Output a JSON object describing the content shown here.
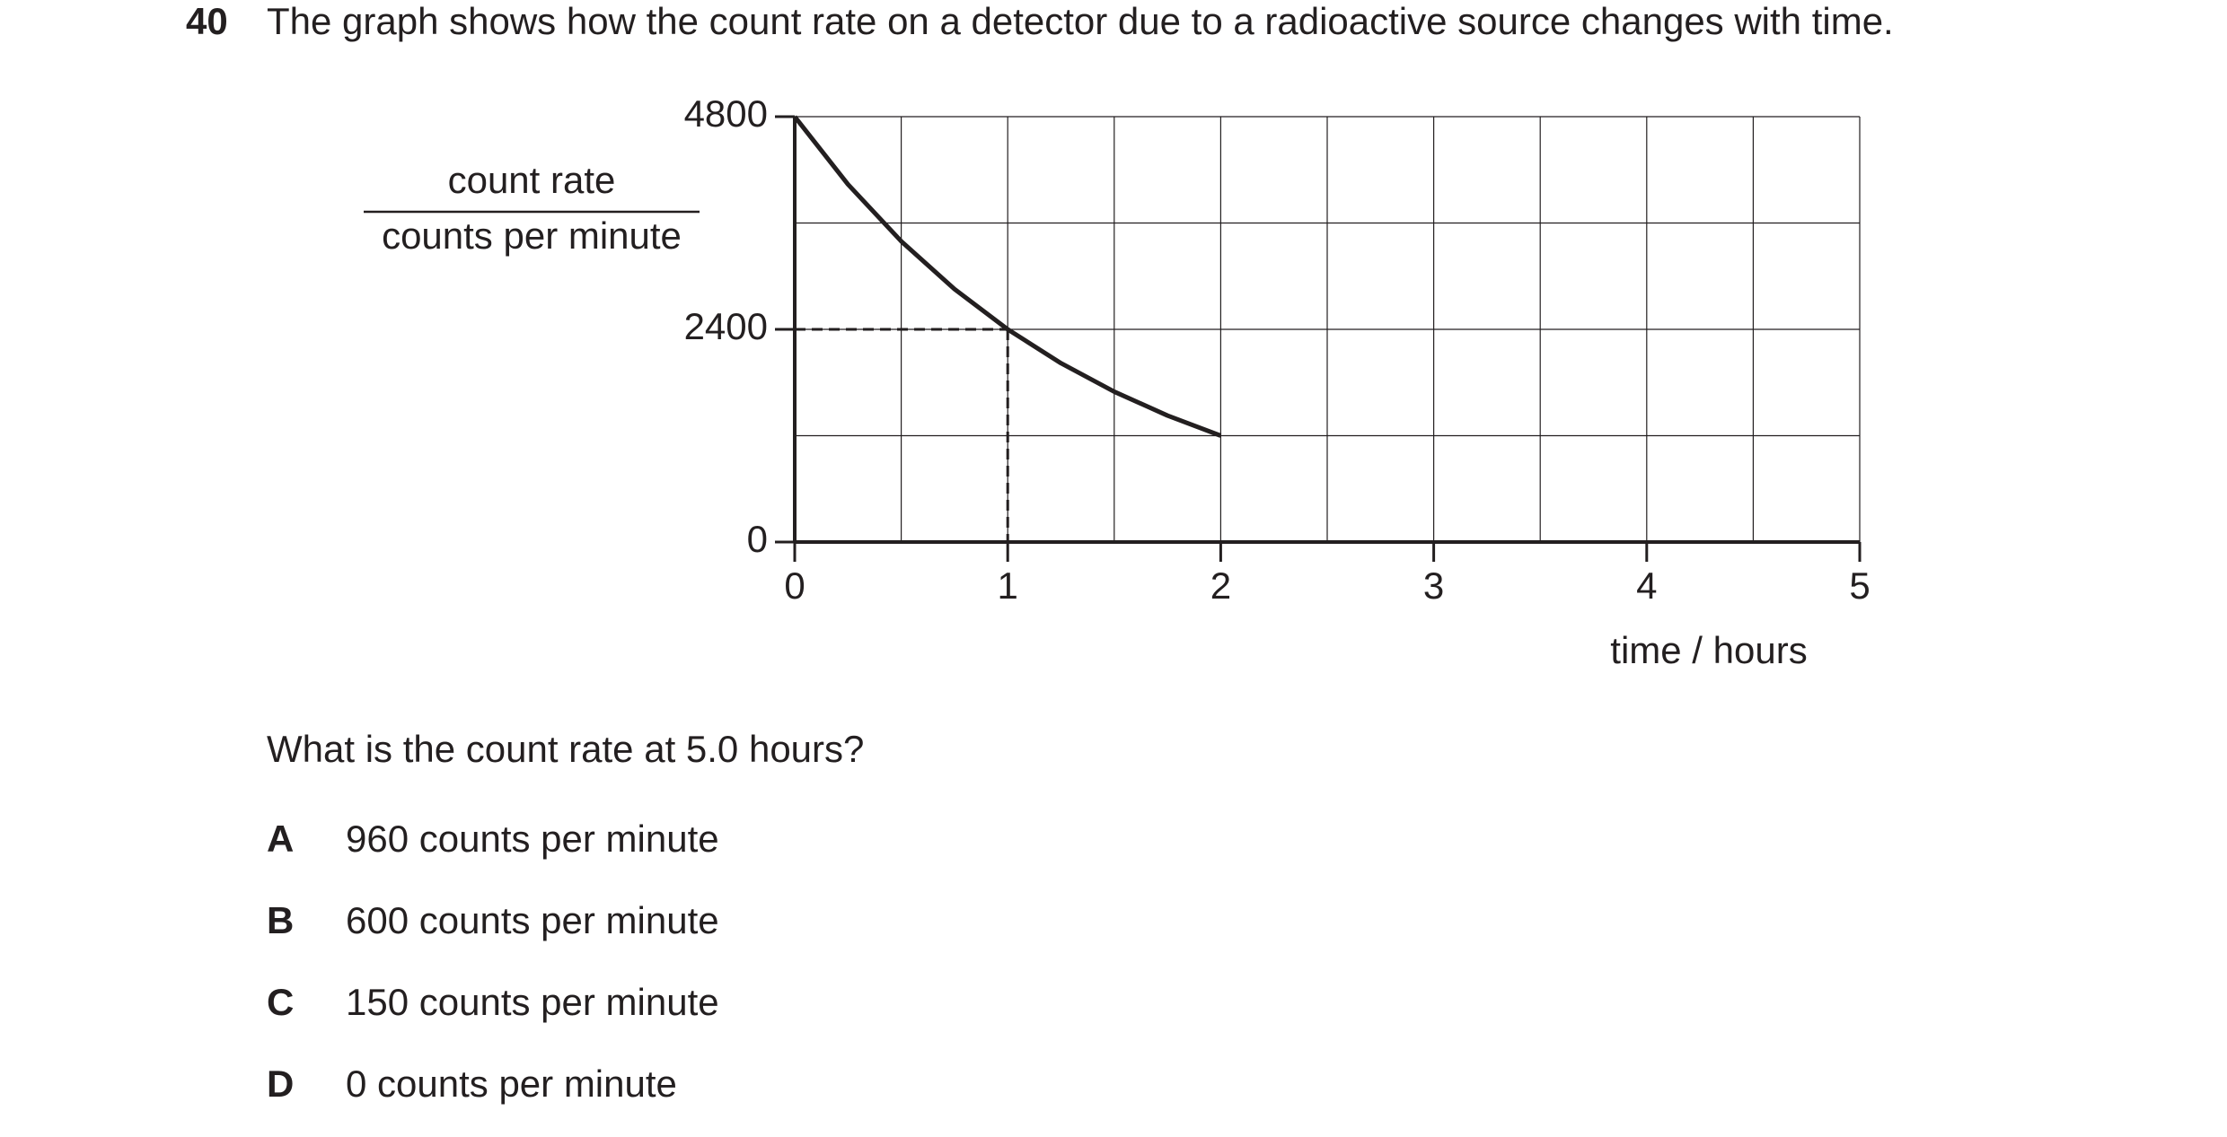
{
  "question": {
    "number": "40",
    "text": "The graph shows how the count rate on a detector due to a radioactive source changes with time."
  },
  "chart_data": {
    "type": "line",
    "y_label": "count rate",
    "y_unit_label": "counts per minute",
    "x_label": "time / hours",
    "x": [
      0,
      0.25,
      0.5,
      0.75,
      1,
      1.25,
      1.5,
      1.75,
      2
    ],
    "values": [
      4800,
      4036,
      3394,
      2854,
      2400,
      2018,
      1697,
      1427,
      1200
    ],
    "color": "#231f20",
    "xlim": [
      0,
      5
    ],
    "ylim": [
      0,
      4800
    ],
    "xticks": [
      0,
      1,
      2,
      3,
      4,
      5
    ],
    "yticks": [
      0,
      2400,
      4800
    ],
    "xgrid": [
      0.5,
      1,
      1.5,
      2,
      2.5,
      3,
      3.5,
      4,
      4.5,
      5
    ],
    "ygrid": [
      1200,
      2400,
      3600,
      4800
    ],
    "guide": {
      "x": 1,
      "y": 2400
    }
  },
  "prompt": "What is the count rate at 5.0 hours?",
  "options": [
    {
      "letter": "A",
      "text": "960 counts per minute"
    },
    {
      "letter": "B",
      "text": "600 counts per minute"
    },
    {
      "letter": "C",
      "text": "150 counts per minute"
    },
    {
      "letter": "D",
      "text": "0 counts per minute"
    }
  ]
}
